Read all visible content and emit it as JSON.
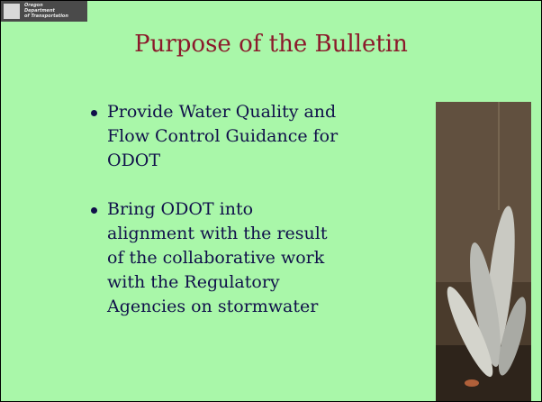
{
  "logo": {
    "lines": [
      "Oregon",
      "Department",
      "of Transportation"
    ]
  },
  "title": "Purpose of the Bulletin",
  "bullets": [
    {
      "lines": [
        "Provide Water Quality and",
        "Flow Control Guidance for",
        "ODOT"
      ]
    },
    {
      "lines": [
        "Bring ODOT into",
        "alignment with the result",
        "of the collaborative work",
        "with the Regulatory",
        "Agencies on stormwater"
      ]
    }
  ]
}
